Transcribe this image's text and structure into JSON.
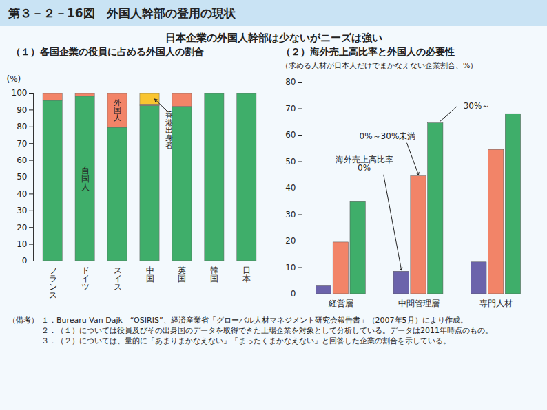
{
  "title": "第３－２－16図　外国人幹部の登用の現状",
  "subtitle": "日本企業の外国人幹部は少ないがニーズは強い",
  "notes_label": "（備考）",
  "notes": [
    "１．Burearu Van Dajk　“OSIRIS”、経済産業省「グローバル人材マネジメント研究会報告書」（2007年5月）により作成。",
    "２．（１）については役員及びその出身国のデータを取得できた上場企業を対象として分析している。データは2011年時点のもの。",
    "３．（２）については、量的に「あまりまかなえない」「まったくまかなえない」と回答した企業の割合を示している。"
  ],
  "chart_data": [
    {
      "type": "bar",
      "stacked": true,
      "title": "（１）各国企業の役員に占める外国人の割合",
      "ylabel": "(%)",
      "categories": [
        "フランス",
        "ドイツ",
        "スイス",
        "中国",
        "英国",
        "韓国",
        "日本"
      ],
      "series": [
        {
          "name": "自国人",
          "color": "#3fae6a",
          "values": [
            95.5,
            98,
            79.5,
            92.5,
            92,
            100,
            100
          ]
        },
        {
          "name": "外国人",
          "color": "#f28468",
          "values": [
            4.5,
            2,
            20.5,
            0.8,
            8,
            0,
            0
          ]
        },
        {
          "name": "香港出身者",
          "color": "#f9c531",
          "values": [
            0,
            0,
            0,
            6.7,
            0,
            0,
            0
          ]
        }
      ],
      "ylim": [
        0,
        100
      ],
      "yticks": [
        0,
        10,
        20,
        30,
        40,
        50,
        60,
        70,
        80,
        90,
        100
      ]
    },
    {
      "type": "bar",
      "title": "（２）海外売上高比率と外国人の必要性",
      "subtitle": "（求める人材が日本人だけでまかなえない企業割合、%）",
      "annotation": "海外売上高比率",
      "categories": [
        "経営層",
        "中間管理層",
        "専門人材"
      ],
      "series": [
        {
          "name": "0%",
          "color": "#6b63ab",
          "values": [
            3,
            8.5,
            12
          ]
        },
        {
          "name": "0%～30%未満",
          "color": "#f28468",
          "values": [
            19.5,
            44.5,
            54.5
          ]
        },
        {
          "name": "30%～",
          "color": "#3fae6a",
          "values": [
            35,
            64.5,
            68
          ]
        }
      ],
      "ylim": [
        0,
        80
      ],
      "yticks": [
        0,
        10,
        20,
        30,
        40,
        50,
        60,
        70,
        80
      ]
    }
  ]
}
